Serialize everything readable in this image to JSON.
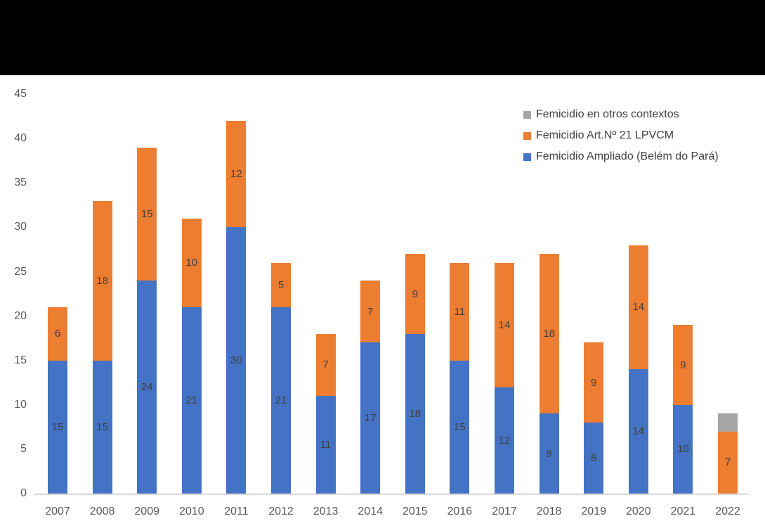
{
  "legend": {
    "items": [
      {
        "label": "Femicidio en otros contextos",
        "color": "#A5A5A5"
      },
      {
        "label": "Femicidio Art.Nº 21 LPVCM",
        "color": "#ED7D31"
      },
      {
        "label": "Femicidio Ampliado (Belém do Pará)",
        "color": "#4472C4"
      }
    ]
  },
  "chart_data": {
    "type": "bar",
    "stacked": true,
    "categories": [
      "2007",
      "2008",
      "2009",
      "2010",
      "2011",
      "2012",
      "2013",
      "2014",
      "2015",
      "2016",
      "2017",
      "2018",
      "2019",
      "2020",
      "2021",
      "2022"
    ],
    "series": [
      {
        "name": "Femicidio Ampliado (Belém do Pará)",
        "color": "#4472C4",
        "show_labels": true,
        "values": [
          15,
          15,
          24,
          21,
          30,
          21,
          11,
          17,
          18,
          15,
          12,
          9,
          8,
          14,
          10,
          0
        ]
      },
      {
        "name": "Femicidio Art.Nº 21 LPVCM",
        "color": "#ED7D31",
        "show_labels": true,
        "values": [
          6,
          18,
          15,
          10,
          12,
          5,
          7,
          7,
          9,
          11,
          14,
          18,
          9,
          14,
          9,
          7
        ]
      },
      {
        "name": "Femicidio en otros contextos",
        "color": "#A5A5A5",
        "show_labels": false,
        "values": [
          0,
          0,
          0,
          0,
          0,
          0,
          0,
          0,
          0,
          0,
          0,
          0,
          0,
          0,
          0,
          2
        ]
      }
    ],
    "y_ticks": [
      0,
      5,
      10,
      15,
      20,
      25,
      30,
      35,
      40,
      45
    ],
    "ylim": [
      0,
      45
    ],
    "grid": false,
    "legend_position": "top-right",
    "colors": {
      "axis_text": "#595959",
      "data_label": "#404040",
      "axis_line": "#D9D9D9",
      "banner": "#000000",
      "background": "#FFFFFF"
    }
  }
}
